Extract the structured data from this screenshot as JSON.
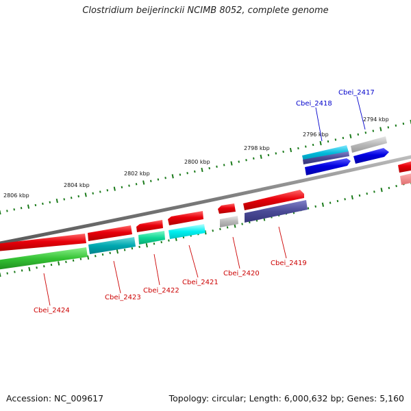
{
  "title": "Clostridium beijerinckii NCIMB 8052, complete genome",
  "footer": {
    "accession": "Accession: NC_009617",
    "summary": "Topology: circular; Length: 6,000,632 bp; Genes: 5,160"
  },
  "ticks": [
    "2794 kbp",
    "2796 kbp",
    "2798 kbp",
    "2800 kbp",
    "2802 kbp",
    "2804 kbp",
    "2806 kbp"
  ],
  "genes": [
    {
      "label": "Cbei_2417",
      "label_color": "#0000cc"
    },
    {
      "label": "Cbei_2418",
      "label_color": "#0000cc"
    },
    {
      "label": "Cbei_2419",
      "label_color": "#cc0000"
    },
    {
      "label": "Cbei_2420",
      "label_color": "#cc0000"
    },
    {
      "label": "Cbei_2421",
      "label_color": "#cc0000"
    },
    {
      "label": "Cbei_2422",
      "label_color": "#cc0000"
    },
    {
      "label": "Cbei_2423",
      "label_color": "#cc0000"
    },
    {
      "label": "Cbei_2424",
      "label_color": "#cc0000"
    }
  ],
  "colors": {
    "backbone": "#808080",
    "tick": "#1a7a1a",
    "gene_red": "#e8000b",
    "gene_blue": "#0000e0",
    "gene_gray": "#b4b4b4",
    "cat_cyan": "#00b8d8",
    "cat_slate": "#4a4a96",
    "cat_green": "#34c234",
    "cat_teal": "#00a8b0",
    "cat_mint": "#10d898",
    "cat_aqua": "#00f0f0"
  }
}
